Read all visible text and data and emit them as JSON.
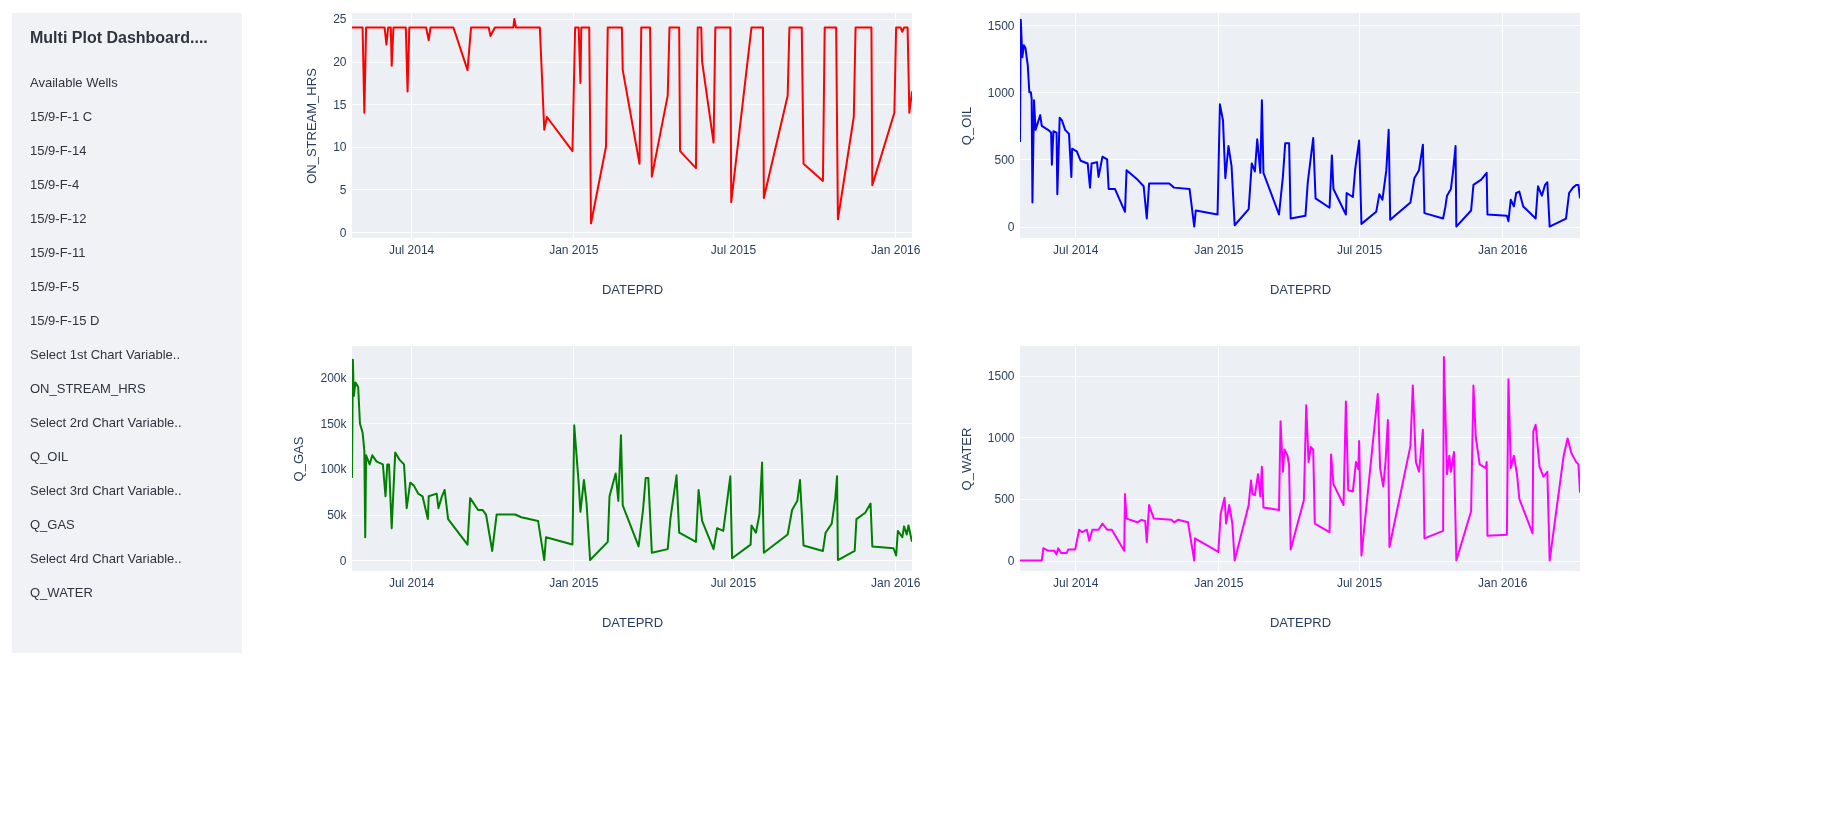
{
  "chart_data": [
    {
      "type": "line",
      "xlabel": "DATEPRD",
      "ylabel": "ON_STREAM_HRS",
      "grid": true,
      "xlim": [
        "2014-04-25",
        "2016-01-20"
      ],
      "ylim": [
        -0.7,
        25.7
      ],
      "xticks": [
        {
          "value": "2014-07-01",
          "label": "Jul 2014"
        },
        {
          "value": "2015-01-01",
          "label": "Jan 2015"
        },
        {
          "value": "2015-07-01",
          "label": "Jul 2015"
        },
        {
          "value": "2016-01-01",
          "label": "Jan 2016"
        }
      ],
      "yticks": [
        0,
        5,
        10,
        15,
        20,
        25
      ],
      "x": [
        "2014-04-25",
        "2014-05-07",
        "2014-05-09",
        "2014-05-11",
        "2014-06-01",
        "2014-06-03",
        "2014-06-05",
        "2014-06-08",
        "2014-06-09",
        "2014-06-11",
        "2014-06-25",
        "2014-06-27",
        "2014-06-29",
        "2014-07-18",
        "2014-07-21",
        "2014-07-23",
        "2014-08-18",
        "2014-09-03",
        "2014-09-07",
        "2014-09-27",
        "2014-09-29",
        "2014-10-04",
        "2014-10-25",
        "2014-10-26",
        "2014-10-28",
        "2014-11-24",
        "2014-11-29",
        "2014-12-02",
        "2014-12-31",
        "2015-01-03",
        "2015-01-07",
        "2015-01-09",
        "2015-01-10",
        "2015-01-19",
        "2015-01-21",
        "2015-02-07",
        "2015-02-09",
        "2015-02-25",
        "2015-02-26",
        "2015-03-17",
        "2015-03-19",
        "2015-03-29",
        "2015-03-31",
        "2015-04-18",
        "2015-04-20",
        "2015-05-01",
        "2015-05-02",
        "2015-05-20",
        "2015-05-22",
        "2015-05-26",
        "2015-05-27",
        "2015-06-09",
        "2015-06-11",
        "2015-06-28",
        "2015-06-29",
        "2015-07-22",
        "2015-08-04",
        "2015-08-05",
        "2015-09-01",
        "2015-09-03",
        "2015-09-17",
        "2015-09-19",
        "2015-10-11",
        "2015-10-13",
        "2015-10-26",
        "2015-10-28",
        "2015-11-15",
        "2015-11-17",
        "2015-12-05",
        "2015-12-06",
        "2015-12-31",
        "2016-01-02",
        "2016-01-07",
        "2016-01-09",
        "2016-01-11",
        "2016-01-15",
        "2016-01-17",
        "2016-01-20"
      ],
      "series": [
        {
          "color": "#ff0000",
          "values": [
            24,
            24,
            14,
            24,
            24,
            22,
            24,
            24,
            19.5,
            24,
            24,
            16.5,
            24,
            24,
            22.5,
            24,
            24,
            19,
            24,
            24,
            23,
            24,
            24,
            25,
            24,
            24,
            12,
            13.5,
            9.5,
            24,
            24,
            17.5,
            24,
            24,
            1,
            10,
            24,
            24,
            19,
            8,
            24,
            24,
            6.5,
            16,
            24,
            24,
            9.5,
            7.5,
            24,
            24,
            20,
            10.5,
            24,
            24,
            3.5,
            24,
            24,
            4,
            16,
            24,
            24,
            8,
            6,
            24,
            24,
            1.5,
            13.5,
            24,
            24,
            5.5,
            14,
            24,
            24,
            23.5,
            24,
            24,
            14,
            16.5
          ]
        }
      ]
    },
    {
      "type": "line",
      "xlabel": "DATEPRD",
      "ylabel": "Q_OIL",
      "grid": true,
      "xlim": [
        "2014-04-21",
        "2016-04-10"
      ],
      "ylim": [
        -85,
        1590
      ],
      "xticks": [
        {
          "value": "2014-07-01",
          "label": "Jul 2014"
        },
        {
          "value": "2015-01-01",
          "label": "Jan 2015"
        },
        {
          "value": "2015-07-01",
          "label": "Jul 2015"
        },
        {
          "value": "2016-01-01",
          "label": "Jan 2016"
        }
      ],
      "yticks": [
        0,
        500,
        1000,
        1500
      ],
      "x": [
        "2014-04-21",
        "2014-04-22",
        "2014-04-24",
        "2014-04-26",
        "2014-04-28",
        "2014-05-01",
        "2014-05-03",
        "2014-05-05",
        "2014-05-06",
        "2014-05-07",
        "2014-05-09",
        "2014-05-11",
        "2014-05-17",
        "2014-05-19",
        "2014-05-27",
        "2014-05-31",
        "2014-06-01",
        "2014-06-03",
        "2014-06-07",
        "2014-06-08",
        "2014-06-11",
        "2014-06-14",
        "2014-06-18",
        "2014-06-23",
        "2014-06-26",
        "2014-06-27",
        "2014-07-03",
        "2014-07-08",
        "2014-07-17",
        "2014-07-20",
        "2014-07-22",
        "2014-07-29",
        "2014-07-31",
        "2014-08-05",
        "2014-08-11",
        "2014-08-13",
        "2014-08-21",
        "2014-09-03",
        "2014-09-05",
        "2014-09-19",
        "2014-09-27",
        "2014-10-01",
        "2014-10-04",
        "2014-10-30",
        "2014-11-05",
        "2014-11-25",
        "2014-12-01",
        "2014-12-03",
        "2014-12-31",
        "2015-01-03",
        "2015-01-07",
        "2015-01-10",
        "2015-01-14",
        "2015-01-18",
        "2015-01-22",
        "2015-02-09",
        "2015-02-13",
        "2015-02-17",
        "2015-02-20",
        "2015-02-24",
        "2015-02-26",
        "2015-02-28",
        "2015-03-20",
        "2015-03-25",
        "2015-03-28",
        "2015-04-02",
        "2015-04-04",
        "2015-04-23",
        "2015-04-26",
        "2015-05-03",
        "2015-05-06",
        "2015-05-24",
        "2015-05-27",
        "2015-05-29",
        "2015-06-14",
        "2015-06-15",
        "2015-06-23",
        "2015-06-26",
        "2015-07-01",
        "2015-07-04",
        "2015-07-23",
        "2015-07-27",
        "2015-07-31",
        "2015-08-05",
        "2015-08-08",
        "2015-08-10",
        "2015-09-05",
        "2015-09-10",
        "2015-09-16",
        "2015-09-21",
        "2015-09-23",
        "2015-10-17",
        "2015-10-20",
        "2015-10-22",
        "2015-10-27",
        "2015-10-30",
        "2015-11-02",
        "2015-11-03",
        "2015-11-22",
        "2015-11-25",
        "2015-12-05",
        "2015-12-12",
        "2015-12-13",
        "2016-01-07",
        "2016-01-09",
        "2016-01-12",
        "2016-01-16",
        "2016-01-19",
        "2016-01-23",
        "2016-01-28",
        "2016-02-13",
        "2016-02-16",
        "2016-02-21",
        "2016-02-25",
        "2016-02-28",
        "2016-03-02",
        "2016-03-23",
        "2016-03-27",
        "2016-04-01",
        "2016-04-05",
        "2016-04-08",
        "2016-04-10"
      ],
      "series": [
        {
          "color": "#0000ff",
          "values": [
            630,
            1540,
            1260,
            1350,
            1330,
            1200,
            1000,
            1000,
            950,
            180,
            940,
            720,
            830,
            750,
            720,
            700,
            460,
            710,
            700,
            240,
            810,
            790,
            720,
            690,
            370,
            580,
            560,
            490,
            470,
            290,
            470,
            480,
            370,
            520,
            500,
            280,
            280,
            110,
            420,
            350,
            300,
            60,
            320,
            320,
            290,
            280,
            0,
            120,
            90,
            910,
            790,
            360,
            600,
            450,
            10,
            130,
            470,
            410,
            650,
            400,
            940,
            400,
            90,
            370,
            620,
            620,
            60,
            80,
            330,
            660,
            210,
            140,
            530,
            280,
            90,
            250,
            220,
            430,
            640,
            20,
            110,
            240,
            200,
            420,
            720,
            50,
            180,
            360,
            420,
            610,
            100,
            60,
            150,
            230,
            280,
            420,
            600,
            0,
            120,
            310,
            350,
            400,
            90,
            80,
            40,
            200,
            150,
            250,
            260,
            150,
            60,
            300,
            230,
            310,
            330,
            0,
            60,
            250,
            290,
            310,
            310,
            210
          ]
        }
      ]
    },
    {
      "type": "line",
      "xlabel": "DATEPRD",
      "ylabel": "Q_GAS",
      "grid": true,
      "xlim": [
        "2014-04-25",
        "2016-01-20"
      ],
      "ylim": [
        -12000,
        235000
      ],
      "xticks": [
        {
          "value": "2014-07-01",
          "label": "Jul 2014"
        },
        {
          "value": "2015-01-01",
          "label": "Jan 2015"
        },
        {
          "value": "2015-07-01",
          "label": "Jul 2015"
        },
        {
          "value": "2016-01-01",
          "label": "Jan 2016"
        }
      ],
      "yticks": [
        0,
        {
          "value": 50000,
          "label": "50k"
        },
        {
          "value": 100000,
          "label": "100k"
        },
        {
          "value": 150000,
          "label": "150k"
        },
        {
          "value": 200000,
          "label": "200k"
        }
      ],
      "x": [
        "2014-04-25",
        "2014-04-26",
        "2014-04-27",
        "2014-04-29",
        "2014-05-02",
        "2014-05-04",
        "2014-05-07",
        "2014-05-09",
        "2014-05-10",
        "2014-05-11",
        "2014-05-15",
        "2014-05-18",
        "2014-05-23",
        "2014-05-30",
        "2014-06-02",
        "2014-06-04",
        "2014-06-06",
        "2014-06-09",
        "2014-06-13",
        "2014-06-18",
        "2014-06-23",
        "2014-06-26",
        "2014-06-30",
        "2014-07-04",
        "2014-07-09",
        "2014-07-14",
        "2014-07-20",
        "2014-07-21",
        "2014-07-30",
        "2014-08-01",
        "2014-08-05",
        "2014-08-08",
        "2014-08-12",
        "2014-09-03",
        "2014-09-06",
        "2014-09-15",
        "2014-09-20",
        "2014-09-24",
        "2014-10-01",
        "2014-10-06",
        "2014-10-27",
        "2014-11-03",
        "2014-11-22",
        "2014-11-29",
        "2014-12-01",
        "2014-12-31",
        "2015-01-02",
        "2015-01-05",
        "2015-01-07",
        "2015-01-09",
        "2015-01-13",
        "2015-01-16",
        "2015-01-20",
        "2015-02-09",
        "2015-02-11",
        "2015-02-18",
        "2015-02-21",
        "2015-02-24",
        "2015-02-26",
        "2015-03-16",
        "2015-03-21",
        "2015-03-24",
        "2015-03-27",
        "2015-03-31",
        "2015-04-18",
        "2015-04-21",
        "2015-04-28",
        "2015-05-01",
        "2015-05-20",
        "2015-05-23",
        "2015-05-27",
        "2015-06-09",
        "2015-06-13",
        "2015-06-20",
        "2015-06-28",
        "2015-06-30",
        "2015-07-21",
        "2015-07-22",
        "2015-07-27",
        "2015-07-31",
        "2015-08-03",
        "2015-08-05",
        "2015-09-01",
        "2015-09-06",
        "2015-09-12",
        "2015-09-15",
        "2015-09-19",
        "2015-10-11",
        "2015-10-14",
        "2015-10-21",
        "2015-10-25",
        "2015-10-27",
        "2015-10-28",
        "2015-11-16",
        "2015-11-18",
        "2015-11-28",
        "2015-12-04",
        "2015-12-06",
        "2015-12-30",
        "2016-01-02",
        "2016-01-04",
        "2016-01-09",
        "2016-01-11",
        "2016-01-14",
        "2016-01-16",
        "2016-01-20"
      ],
      "series": [
        {
          "color": "#008000",
          "values": [
            90000,
            220000,
            180000,
            195000,
            190000,
            150000,
            140000,
            120000,
            25000,
            115000,
            105000,
            115000,
            108000,
            105000,
            70000,
            105000,
            105000,
            35000,
            118000,
            110000,
            105000,
            57000,
            85000,
            82000,
            73000,
            70000,
            45000,
            70000,
            73000,
            57000,
            70000,
            77000,
            45000,
            17000,
            68000,
            55000,
            55000,
            50000,
            10000,
            50000,
            50000,
            47000,
            43000,
            0,
            25000,
            17000,
            148000,
            110000,
            85000,
            53000,
            88000,
            62000,
            0,
            20000,
            70000,
            95000,
            65000,
            137000,
            60000,
            15000,
            55000,
            90000,
            90000,
            8000,
            12000,
            45000,
            93000,
            30000,
            20000,
            77000,
            43000,
            12000,
            35000,
            32000,
            92000,
            2000,
            17000,
            38000,
            30000,
            50000,
            107000,
            8000,
            28000,
            55000,
            65000,
            88000,
            16000,
            10000,
            30000,
            40000,
            68000,
            92000,
            0,
            10000,
            45000,
            52000,
            62000,
            15000,
            13000,
            5000,
            32000,
            25000,
            37000,
            28000,
            38000,
            20000
          ]
        }
      ]
    },
    {
      "type": "line",
      "xlabel": "DATEPRD",
      "ylabel": "Q_WATER",
      "grid": true,
      "xlim": [
        "2014-04-21",
        "2016-04-10"
      ],
      "ylim": [
        -85,
        1740
      ],
      "xticks": [
        {
          "value": "2014-07-01",
          "label": "Jul 2014"
        },
        {
          "value": "2015-01-01",
          "label": "Jan 2015"
        },
        {
          "value": "2015-07-01",
          "label": "Jul 2015"
        },
        {
          "value": "2016-01-01",
          "label": "Jan 2016"
        }
      ],
      "yticks": [
        0,
        500,
        1000,
        1500
      ],
      "x": [
        "2014-04-21",
        "2014-05-19",
        "2014-05-21",
        "2014-05-27",
        "2014-06-04",
        "2014-06-07",
        "2014-06-09",
        "2014-06-13",
        "2014-06-20",
        "2014-06-22",
        "2014-07-01",
        "2014-07-06",
        "2014-07-10",
        "2014-07-16",
        "2014-07-19",
        "2014-07-23",
        "2014-07-31",
        "2014-08-05",
        "2014-08-11",
        "2014-08-17",
        "2014-09-02",
        "2014-09-03",
        "2014-09-05",
        "2014-09-19",
        "2014-09-24",
        "2014-09-29",
        "2014-10-01",
        "2014-10-04",
        "2014-10-10",
        "2014-11-02",
        "2014-11-05",
        "2014-11-10",
        "2014-11-23",
        "2014-12-01",
        "2014-12-02",
        "2015-01-01",
        "2015-01-04",
        "2015-01-09",
        "2015-01-11",
        "2015-01-15",
        "2015-01-19",
        "2015-01-22",
        "2015-02-09",
        "2015-02-12",
        "2015-02-14",
        "2015-02-17",
        "2015-02-21",
        "2015-02-24",
        "2015-02-26",
        "2015-02-28",
        "2015-03-20",
        "2015-03-22",
        "2015-03-25",
        "2015-03-27",
        "2015-03-31",
        "2015-04-02",
        "2015-04-04",
        "2015-04-21",
        "2015-04-24",
        "2015-04-27",
        "2015-04-30",
        "2015-05-03",
        "2015-05-05",
        "2015-05-24",
        "2015-05-26",
        "2015-05-29",
        "2015-06-11",
        "2015-06-14",
        "2015-06-17",
        "2015-06-23",
        "2015-06-27",
        "2015-06-30",
        "2015-07-01",
        "2015-07-04",
        "2015-07-25",
        "2015-07-28",
        "2015-08-01",
        "2015-08-04",
        "2015-08-07",
        "2015-08-09",
        "2015-09-05",
        "2015-09-08",
        "2015-09-12",
        "2015-09-16",
        "2015-09-18",
        "2015-09-21",
        "2015-09-23",
        "2015-10-17",
        "2015-10-18",
        "2015-10-22",
        "2015-10-25",
        "2015-10-27",
        "2015-10-31",
        "2015-11-03",
        "2015-11-22",
        "2015-11-25",
        "2015-11-28",
        "2015-12-03",
        "2015-12-11",
        "2015-12-12",
        "2015-12-13",
        "2016-01-07",
        "2016-01-09",
        "2016-01-12",
        "2016-01-16",
        "2016-01-20",
        "2016-01-23",
        "2016-02-09",
        "2016-02-10",
        "2016-02-13",
        "2016-02-18",
        "2016-02-23",
        "2016-02-28",
        "2016-03-02",
        "2016-03-20",
        "2016-03-25",
        "2016-03-30",
        "2016-04-05",
        "2016-04-08",
        "2016-04-10"
      ],
      "series": [
        {
          "color": "#ff00ff",
          "values": [
            0,
            0,
            100,
            80,
            80,
            50,
            100,
            60,
            60,
            90,
            90,
            250,
            230,
            250,
            160,
            250,
            250,
            300,
            250,
            250,
            80,
            540,
            340,
            310,
            330,
            320,
            150,
            450,
            340,
            330,
            310,
            330,
            310,
            0,
            180,
            70,
            380,
            510,
            300,
            450,
            300,
            0,
            450,
            650,
            540,
            530,
            700,
            520,
            760,
            430,
            410,
            1130,
            720,
            900,
            850,
            770,
            90,
            490,
            1260,
            800,
            920,
            900,
            300,
            230,
            860,
            620,
            450,
            1290,
            570,
            560,
            800,
            740,
            970,
            40,
            1350,
            750,
            600,
            800,
            1140,
            110,
            930,
            1420,
            800,
            720,
            850,
            1060,
            180,
            240,
            1650,
            700,
            850,
            720,
            880,
            0,
            400,
            1420,
            1000,
            780,
            750,
            800,
            200,
            210,
            1470,
            750,
            850,
            700,
            500,
            220,
            1050,
            1100,
            760,
            680,
            720,
            0,
            850,
            990,
            870,
            800,
            780,
            550
          ]
        }
      ]
    },
    {
      "type": "other",
      "title": "Multi Plot Dashboard....",
      "annotations": [
        "Available Wells",
        "15/9-F-1 C",
        "15/9-F-14",
        "15/9-F-4",
        "15/9-F-12",
        "15/9-F-11",
        "15/9-F-5",
        "15/9-F-15 D",
        "Select 1st Chart Variable..",
        "ON_STREAM_HRS",
        "Select 2rd Chart Variable..",
        "Q_OIL",
        "Select 3rd Chart Variable..",
        "Q_GAS",
        "Select 4rd Chart Variable..",
        "Q_WATER"
      ]
    }
  ]
}
